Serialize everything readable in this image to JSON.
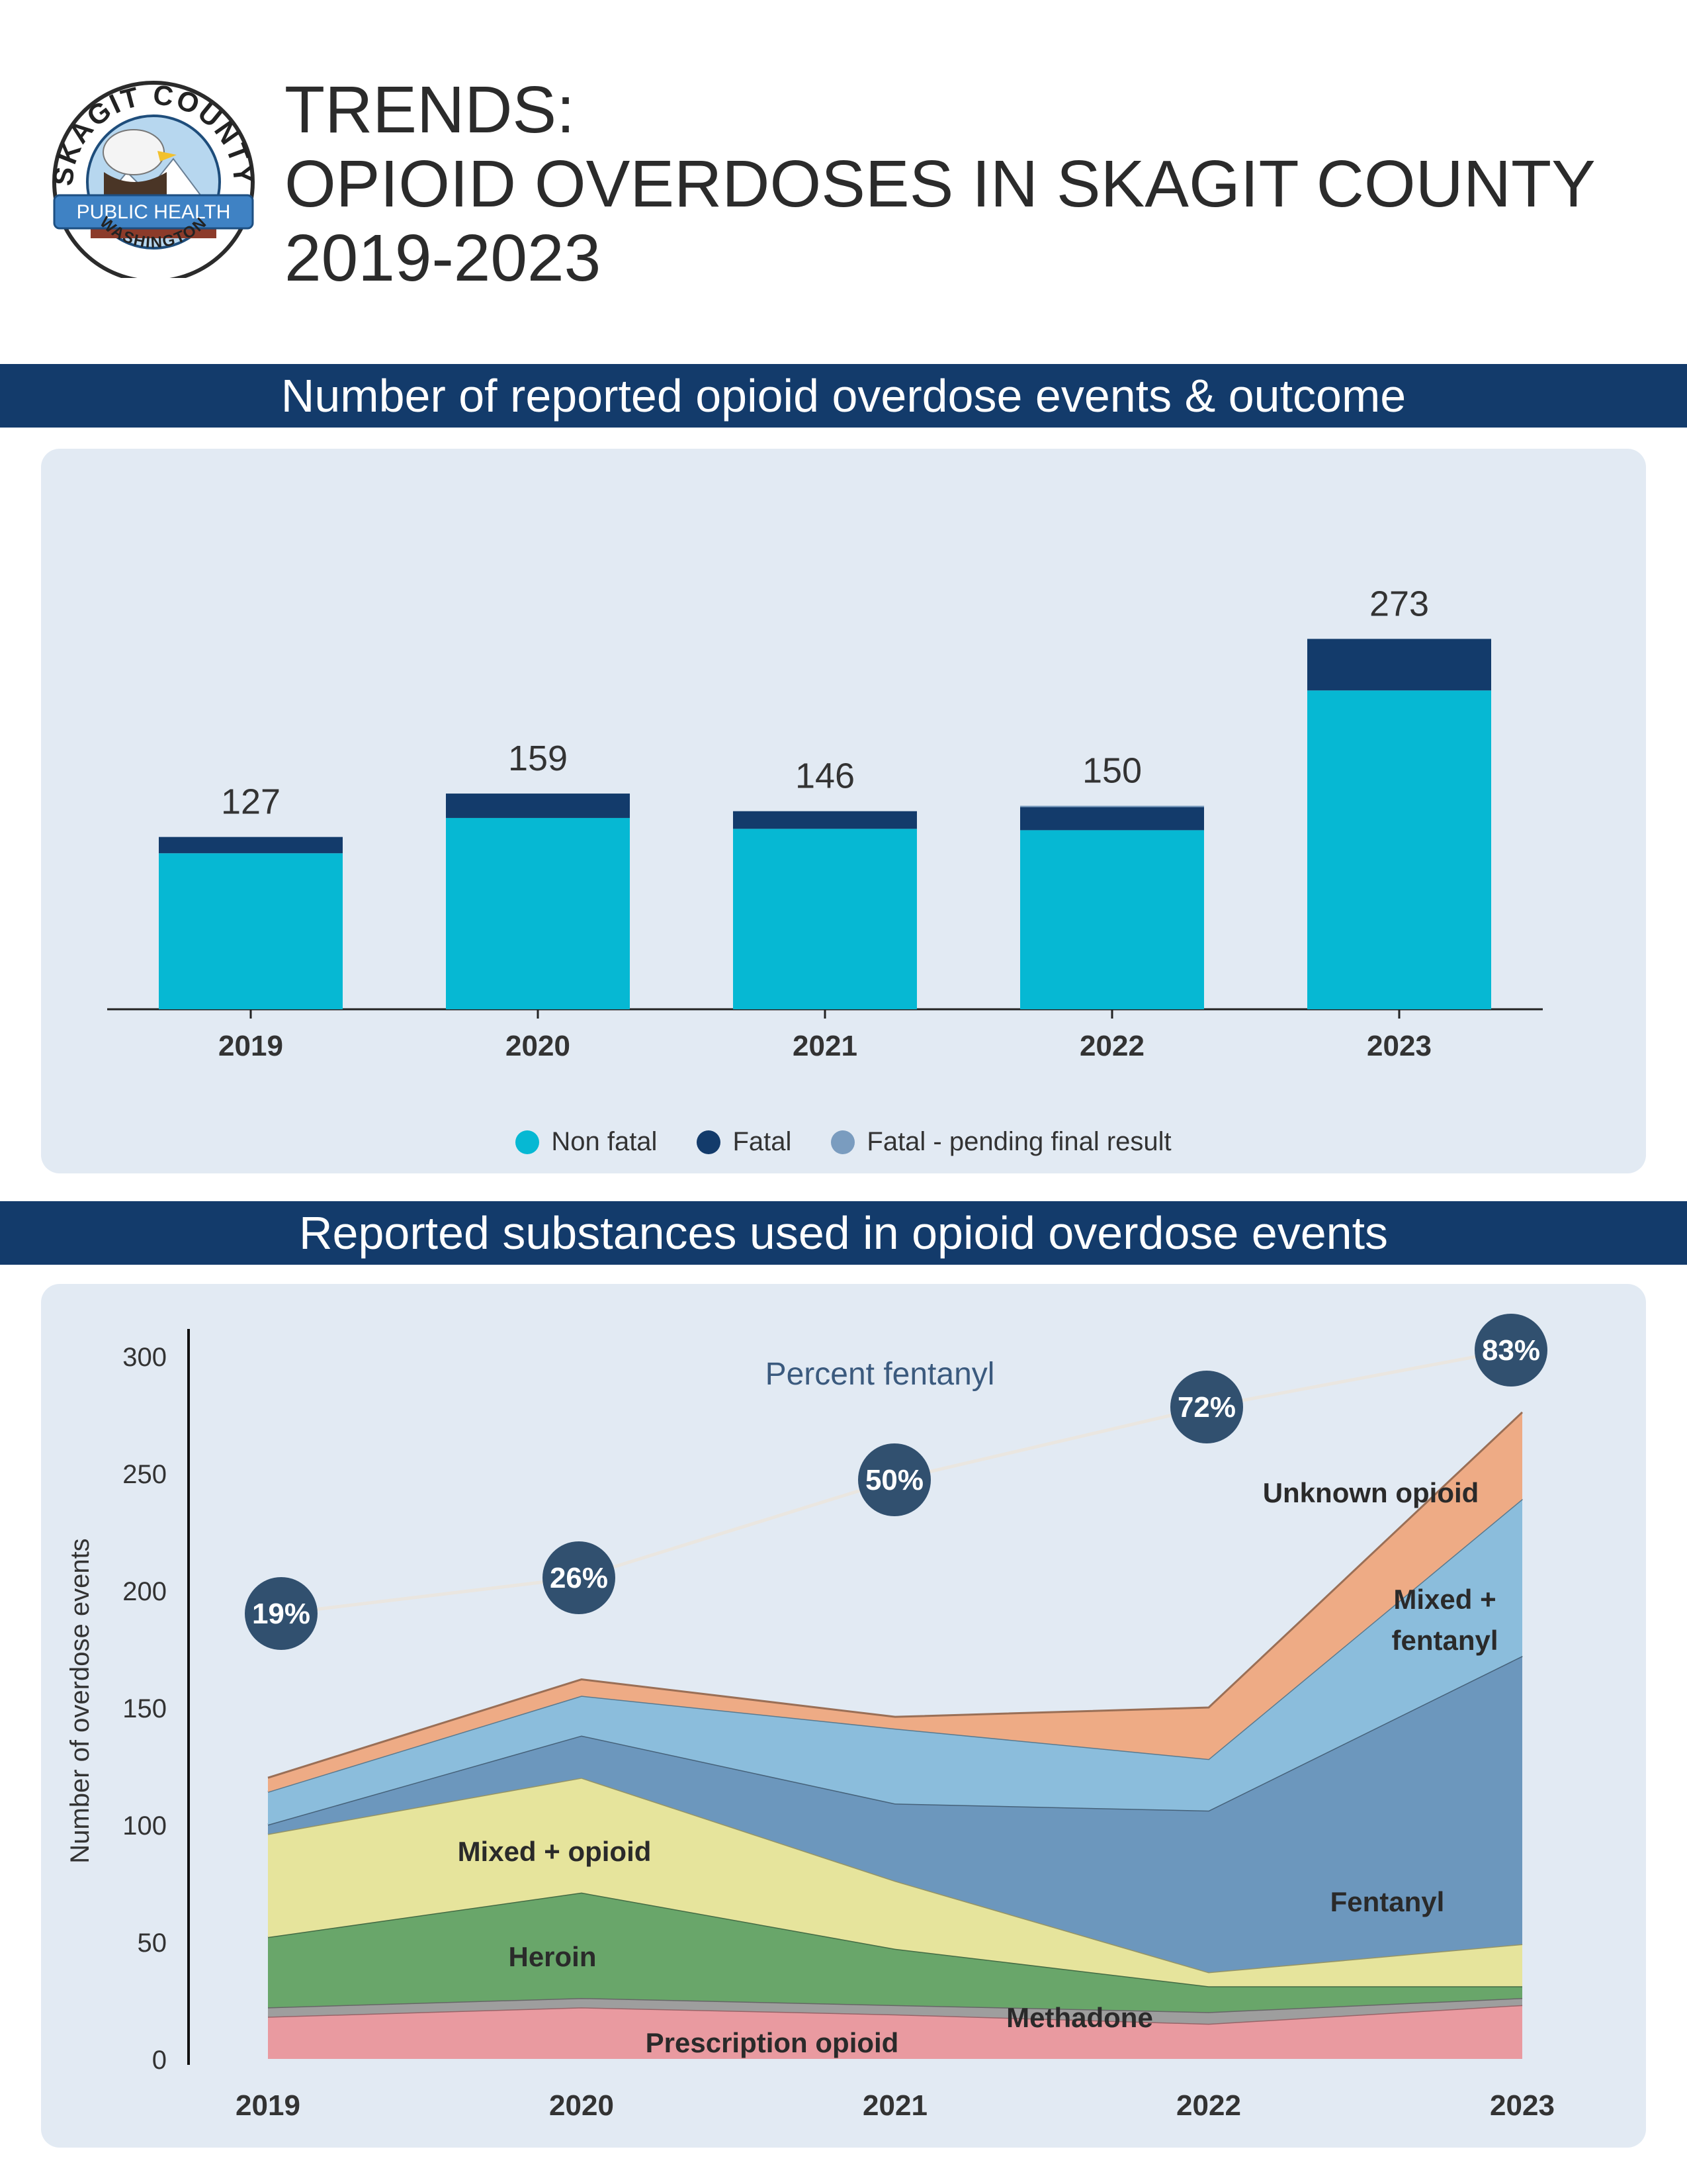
{
  "logo": {
    "top_text": "SKAGIT COUNTY",
    "ribbon_text": "PUBLIC HEALTH",
    "bottom_text": "WASHINGTON"
  },
  "title": {
    "line1": "TRENDS:",
    "line2": "OPIOID OVERDOSES IN SKAGIT COUNTY",
    "line3": "2019-2023"
  },
  "section1": {
    "heading": "Number of reported opioid overdose events & outcome"
  },
  "section2": {
    "heading": "Reported substances used in opioid overdose events"
  },
  "colors": {
    "banner": "#133b6b",
    "panel": "#e2eaf3",
    "non_fatal": "#06b8d3",
    "fatal": "#133b6b",
    "fatal_pending": "#7a9cbf"
  },
  "chart_data": [
    {
      "type": "bar",
      "stacked": true,
      "categories": [
        "2019",
        "2020",
        "2021",
        "2022",
        "2023"
      ],
      "series": [
        {
          "name": "Non fatal",
          "color": "#06b8d3",
          "values": [
            115,
            141,
            133,
            132,
            235
          ]
        },
        {
          "name": "Fatal",
          "color": "#133b6b",
          "values": [
            12,
            18,
            13,
            17,
            38
          ]
        },
        {
          "name": "Fatal - pending final result",
          "color": "#7a9cbf",
          "values": [
            0,
            0,
            0,
            1,
            0
          ]
        }
      ],
      "totals": [
        "127",
        "159",
        "146",
        "150",
        "273"
      ],
      "ylim": [
        0,
        300
      ],
      "legend": "bottom-center"
    },
    {
      "type": "area",
      "stacked": true,
      "x": [
        "2019",
        "2020",
        "2021",
        "2022",
        "2023"
      ],
      "ylabel": "Number of overdose events",
      "ylim": [
        0,
        300
      ],
      "yticks": [
        "0",
        "50",
        "100",
        "150",
        "200",
        "250",
        "300"
      ],
      "series": [
        {
          "name": "Prescription opioid",
          "color": "#e99aa0",
          "values": [
            18,
            22,
            19,
            15,
            23
          ]
        },
        {
          "name": "Methadone",
          "color": "#9e9e9e",
          "values": [
            4,
            4,
            4,
            5,
            3
          ]
        },
        {
          "name": "Heroin",
          "color": "#69a66a",
          "values": [
            30,
            45,
            24,
            11,
            5
          ]
        },
        {
          "name": "Mixed + opioid",
          "color": "#e6e49c",
          "values": [
            44,
            49,
            29,
            6,
            18
          ]
        },
        {
          "name": "Fentanyl",
          "color": "#6c97bd",
          "values": [
            4,
            18,
            33,
            69,
            123
          ]
        },
        {
          "name": "Mixed + fentanyl",
          "color": "#8bbddc",
          "values": [
            14,
            17,
            32,
            22,
            67
          ]
        },
        {
          "name": "Unknown opioid",
          "color": "#eeab85",
          "values": [
            6,
            7,
            5,
            22,
            37
          ]
        }
      ],
      "percent_fentanyl": {
        "label": "Percent fentanyl",
        "values": [
          "19%",
          "26%",
          "50%",
          "72%",
          "83%"
        ]
      }
    }
  ]
}
